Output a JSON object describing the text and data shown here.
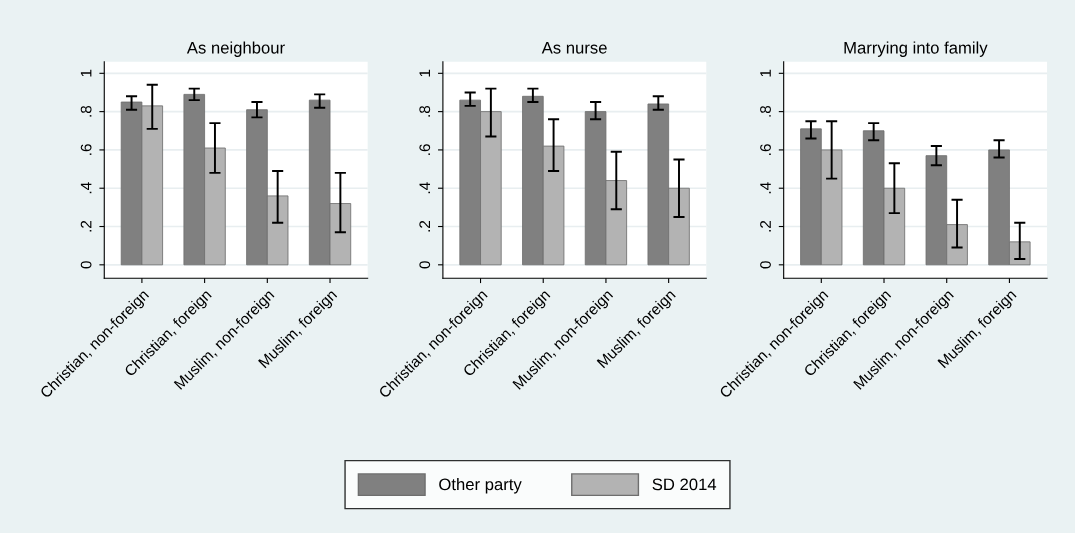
{
  "chart_data": [
    {
      "type": "bar",
      "title": "As neighbour",
      "categories": [
        "Christian, non-foreign",
        "Christian, foreign",
        "Muslim, non-foreign",
        "Muslim, foreign"
      ],
      "ylim": [
        -0.07,
        1.06
      ],
      "yticks": [
        {
          "value": 0,
          "label": "0"
        },
        {
          "value": 0.2,
          "label": ".2"
        },
        {
          "value": 0.4,
          "label": ".4"
        },
        {
          "value": 0.6,
          "label": ".6"
        },
        {
          "value": 0.8,
          "label": ".8"
        },
        {
          "value": 1,
          "label": "1"
        }
      ],
      "grid": "y",
      "legend": "bottom",
      "series": [
        {
          "name": "Other party",
          "color": "#808080",
          "values": [
            0.85,
            0.89,
            0.81,
            0.86
          ],
          "errors": [
            [
              0.81,
              0.88
            ],
            [
              0.86,
              0.92
            ],
            [
              0.77,
              0.85
            ],
            [
              0.82,
              0.89
            ]
          ]
        },
        {
          "name": "SD 2014",
          "color": "#b3b3b3",
          "values": [
            0.83,
            0.61,
            0.36,
            0.32
          ],
          "errors": [
            [
              0.71,
              0.94
            ],
            [
              0.48,
              0.74
            ],
            [
              0.22,
              0.49
            ],
            [
              0.17,
              0.48
            ]
          ]
        }
      ]
    },
    {
      "type": "bar",
      "title": "As nurse",
      "categories": [
        "Christian, non-foreign",
        "Christian, foreign",
        "Muslim, non-foreign",
        "Muslim, foreign"
      ],
      "ylim": [
        -0.07,
        1.06
      ],
      "yticks": [
        {
          "value": 0,
          "label": "0"
        },
        {
          "value": 0.2,
          "label": ".2"
        },
        {
          "value": 0.4,
          "label": ".4"
        },
        {
          "value": 0.6,
          "label": ".6"
        },
        {
          "value": 0.8,
          "label": ".8"
        },
        {
          "value": 1,
          "label": "1"
        }
      ],
      "grid": "y",
      "series": [
        {
          "color": "#808080",
          "values": [
            0.86,
            0.88,
            0.8,
            0.84
          ],
          "errors": [
            [
              0.83,
              0.9
            ],
            [
              0.85,
              0.92
            ],
            [
              0.76,
              0.85
            ],
            [
              0.81,
              0.88
            ]
          ]
        },
        {
          "color": "#b3b3b3",
          "values": [
            0.8,
            0.62,
            0.44,
            0.4
          ],
          "errors": [
            [
              0.67,
              0.92
            ],
            [
              0.49,
              0.76
            ],
            [
              0.29,
              0.59
            ],
            [
              0.25,
              0.55
            ]
          ]
        }
      ]
    },
    {
      "type": "bar",
      "title": "Marrying into family",
      "categories": [
        "Christian, non-foreign",
        "Christian, foreign",
        "Muslim, non-foreign",
        "Muslim, foreign"
      ],
      "ylim": [
        -0.07,
        1.06
      ],
      "yticks": [
        {
          "value": 0,
          "label": "0"
        },
        {
          "value": 0.2,
          "label": ".2"
        },
        {
          "value": 0.4,
          "label": ".4"
        },
        {
          "value": 0.6,
          "label": ".6"
        },
        {
          "value": 0.8,
          "label": ".8"
        },
        {
          "value": 1,
          "label": "1"
        }
      ],
      "grid": "y",
      "series": [
        {
          "color": "#808080",
          "values": [
            0.71,
            0.7,
            0.57,
            0.6
          ],
          "errors": [
            [
              0.66,
              0.75
            ],
            [
              0.65,
              0.74
            ],
            [
              0.52,
              0.62
            ],
            [
              0.56,
              0.65
            ]
          ]
        },
        {
          "color": "#b3b3b3",
          "values": [
            0.6,
            0.4,
            0.21,
            0.12
          ],
          "errors": [
            [
              0.45,
              0.75
            ],
            [
              0.27,
              0.53
            ],
            [
              0.09,
              0.34
            ],
            [
              0.03,
              0.22
            ]
          ]
        }
      ]
    }
  ]
}
